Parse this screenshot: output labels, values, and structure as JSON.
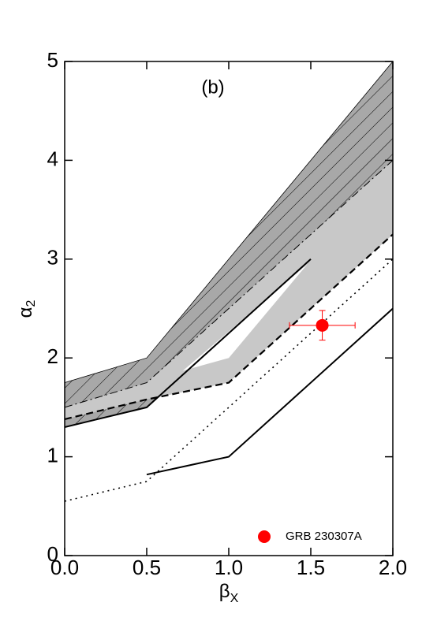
{
  "chart_data": {
    "type": "region-line",
    "annotation": "(b)",
    "x_label": {
      "symbol": "β",
      "subscript": "X"
    },
    "y_label": {
      "symbol": "α",
      "subscript": "2"
    },
    "xlim": [
      0,
      2
    ],
    "ylim": [
      0,
      5
    ],
    "xticks": [
      {
        "value": 0,
        "label": "0.0"
      },
      {
        "value": 0.5,
        "label": "0.5"
      },
      {
        "value": 1,
        "label": "1.0"
      },
      {
        "value": 1.5,
        "label": "1.5"
      },
      {
        "value": 2,
        "label": "2.0"
      }
    ],
    "yticks": [
      0,
      1,
      2,
      3,
      4,
      5
    ],
    "regions": [
      {
        "x": [
          0,
          0.5,
          2
        ],
        "upper": [
          1.75,
          2.0,
          5.0
        ],
        "lower": [
          1.3,
          1.5,
          4.0
        ],
        "fill": "hatch",
        "color": "#a8a8a8"
      },
      {
        "x": [
          0,
          0.5,
          1,
          2
        ],
        "upper": [
          1.5,
          1.75,
          2.5,
          4.0
        ],
        "lower": [
          1.38,
          1.58,
          1.75,
          3.25
        ],
        "fill": "solid",
        "color": "#c8c8c8"
      }
    ],
    "gap": {
      "x": [
        0.72,
        1.0,
        1.48
      ],
      "y": [
        1.87,
        2.0,
        2.95
      ],
      "color": "#ffffff"
    },
    "lines": [
      {
        "x": [
          0,
          0.5,
          1.5
        ],
        "y": [
          1.3,
          1.5,
          3.0
        ],
        "style": "solid",
        "color": "#000000"
      },
      {
        "x": [
          0,
          0.5,
          2
        ],
        "y": [
          1.5,
          1.75,
          4.0
        ],
        "style": "dashdot",
        "color": "#000000"
      },
      {
        "x": [
          0,
          0.5,
          1,
          2
        ],
        "y": [
          1.38,
          1.58,
          1.75,
          3.25
        ],
        "style": "dashed",
        "color": "#000000"
      },
      {
        "x": [
          0,
          0.5,
          2
        ],
        "y": [
          0.55,
          0.75,
          3.0
        ],
        "style": "dotted",
        "color": "#000000"
      },
      {
        "x": [
          0.5,
          1,
          2
        ],
        "y": [
          0.82,
          1.0,
          2.5
        ],
        "style": "solid",
        "color": "#000000"
      }
    ],
    "points": [
      {
        "name": "GRB 230307A",
        "color": "#ff0000",
        "x": [
          1.57
        ],
        "y": [
          2.33
        ],
        "xerr": [
          0.2
        ],
        "yerr": [
          0.15
        ]
      }
    ]
  }
}
